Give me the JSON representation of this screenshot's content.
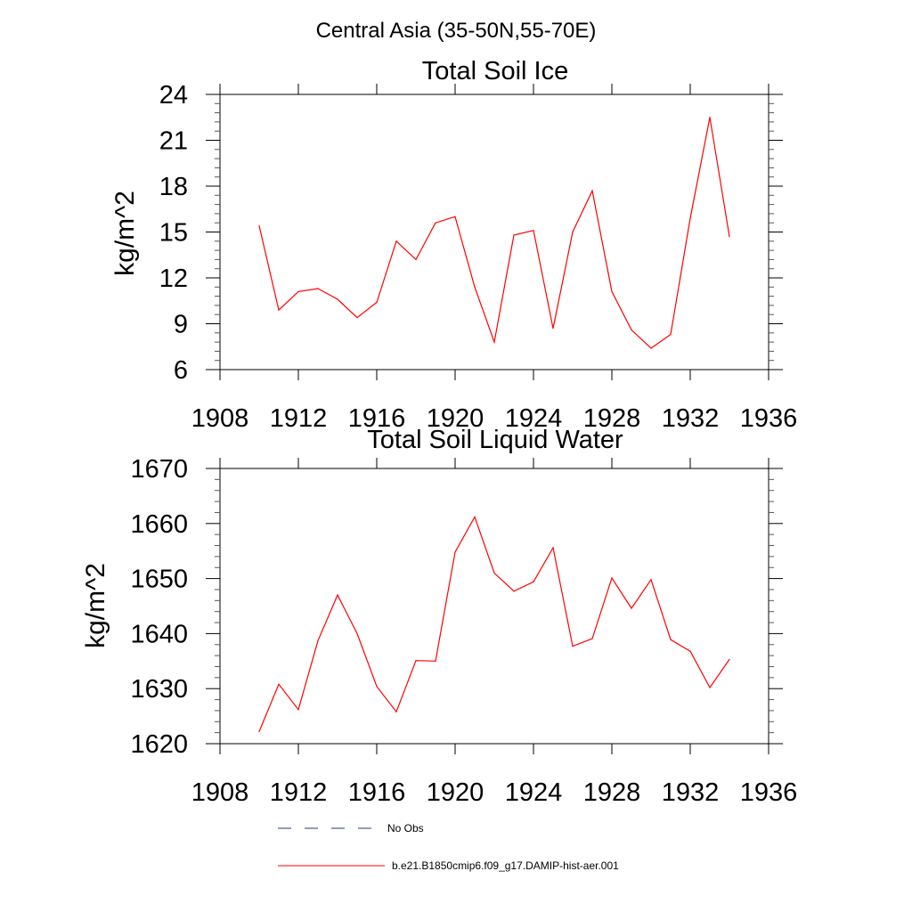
{
  "page_title": "Central Asia (35-50N,55-70E)",
  "legend": {
    "entries": [
      {
        "label": "No Obs",
        "color": "#1f3a7a",
        "style": "dashed"
      },
      {
        "label": "b.e21.B1850cmip6.f09_g17.DAMIP-hist-aer.001",
        "color": "#ff0000",
        "style": "solid"
      }
    ]
  },
  "chart_data": [
    {
      "type": "line",
      "title": "Total Soil Ice",
      "xlabel": "",
      "ylabel": "kg/m^2",
      "xlim": [
        1908,
        1936
      ],
      "ylim": [
        6,
        24
      ],
      "x_ticks": [
        "1908",
        "1912",
        "1916",
        "1920",
        "1924",
        "1928",
        "1932",
        "1936"
      ],
      "y_ticks": [
        "6",
        "9",
        "12",
        "15",
        "18",
        "21",
        "24"
      ],
      "series": [
        {
          "color": "#ff0000",
          "x": [
            1910,
            1911,
            1912,
            1913,
            1914,
            1915,
            1916,
            1917,
            1918,
            1919,
            1920,
            1921,
            1922,
            1923,
            1924,
            1925,
            1926,
            1927,
            1928,
            1929,
            1930,
            1931,
            1932,
            1933,
            1934
          ],
          "y": [
            15.4,
            9.9,
            11.1,
            11.3,
            10.6,
            9.4,
            10.4,
            14.4,
            13.2,
            15.6,
            16.0,
            11.4,
            7.8,
            14.8,
            15.1,
            8.7,
            15.0,
            17.7,
            11.1,
            8.6,
            7.4,
            8.3,
            15.9,
            22.5,
            14.7
          ]
        }
      ]
    },
    {
      "type": "line",
      "title": "Total Soil Liquid Water",
      "xlabel": "",
      "ylabel": "kg/m^2",
      "xlim": [
        1908,
        1936
      ],
      "ylim": [
        1620,
        1670
      ],
      "x_ticks": [
        "1908",
        "1912",
        "1916",
        "1920",
        "1924",
        "1928",
        "1932",
        "1936"
      ],
      "y_ticks": [
        "1620",
        "1630",
        "1640",
        "1650",
        "1660",
        "1670"
      ],
      "series": [
        {
          "color": "#ff0000",
          "x": [
            1910,
            1911,
            1912,
            1913,
            1914,
            1915,
            1916,
            1917,
            1918,
            1919,
            1920,
            1921,
            1922,
            1923,
            1924,
            1925,
            1926,
            1927,
            1928,
            1929,
            1930,
            1931,
            1932,
            1933,
            1934
          ],
          "y": [
            1622.2,
            1630.8,
            1626.2,
            1638.7,
            1647.0,
            1640.0,
            1630.4,
            1625.8,
            1635.1,
            1635.0,
            1654.8,
            1661.2,
            1651.0,
            1647.7,
            1649.4,
            1655.6,
            1637.7,
            1639.1,
            1650.1,
            1644.6,
            1649.8,
            1638.9,
            1636.8,
            1630.2,
            1635.3
          ]
        }
      ]
    }
  ]
}
